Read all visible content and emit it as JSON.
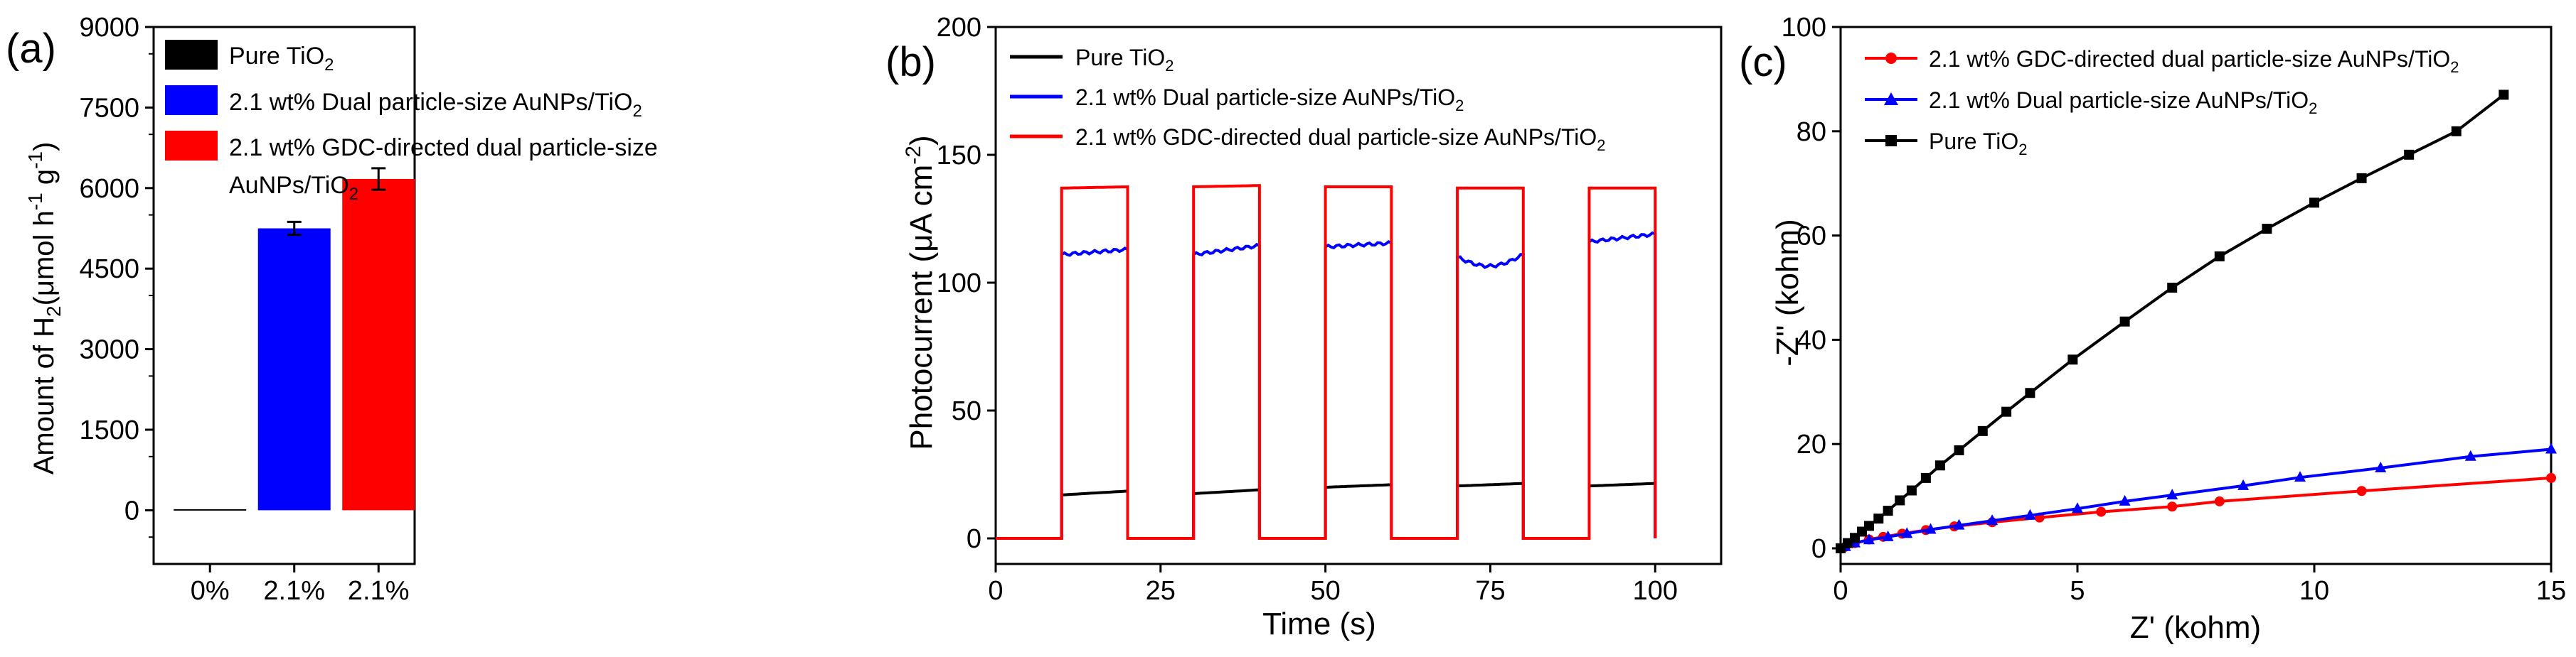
{
  "colors": {
    "black": "#000000",
    "blue": "#0000ff",
    "red": "#ff0000"
  },
  "chart_data": [
    {
      "type": "bar",
      "panel_label": "(a)",
      "categories": [
        "0%",
        "2.1%",
        "2.1%"
      ],
      "values": [
        20,
        5250,
        6170
      ],
      "errors": [
        0,
        120,
        200
      ],
      "colors": [
        "#000000",
        "#0000ff",
        "#ff0000"
      ],
      "ylabel": {
        "a": "Amount of H",
        "sub": "2",
        "b": "(μmol h",
        "sup1": "-1",
        "c": " g",
        "sup2": "-1",
        "d": ")"
      },
      "ylim": [
        -1000,
        9000
      ],
      "yticks": [
        0,
        1500,
        3000,
        4500,
        6000,
        7500,
        9000
      ],
      "xlabel": "",
      "legend": [
        {
          "name": "Pure TiO",
          "sub": "2",
          "color": "#000000"
        },
        {
          "name": "2.1 wt% Dual particle-size AuNPs/TiO",
          "sub": "2",
          "color": "#0000ff"
        },
        {
          "name": "2.1 wt% GDC-directed dual particle-size",
          "line2": "AuNPs/TiO",
          "sub": "2",
          "color": "#ff0000"
        }
      ]
    },
    {
      "type": "line",
      "panel_label": "(b)",
      "xlabel": "Time (s)",
      "ylabel": {
        "a": "Photocurrent (μA cm",
        "sup": "-2",
        "b": ")"
      },
      "xlim": [
        0,
        110
      ],
      "ylim": [
        -10,
        200
      ],
      "xticks": [
        0,
        25,
        50,
        75,
        100
      ],
      "yticks": [
        0,
        50,
        100,
        150,
        200
      ],
      "on_intervals": [
        [
          10,
          20
        ],
        [
          30,
          40
        ],
        [
          50,
          60
        ],
        [
          70,
          80
        ],
        [
          90,
          100
        ]
      ],
      "series": [
        {
          "name": "Pure TiO",
          "sub": "2",
          "color": "#000000",
          "off": 0,
          "on_start": [
            17,
            17.5,
            20,
            20.5,
            20.5
          ],
          "on_end": [
            18.5,
            19,
            21,
            21.5,
            21.5
          ],
          "dip": 0
        },
        {
          "name": "2.1 wt% Dual particle-size AuNPs/TiO",
          "sub": "2",
          "color": "#0000ff",
          "off": 0,
          "on_start": [
            111,
            111,
            114,
            110,
            116
          ],
          "on_end": [
            113,
            114.5,
            115.5,
            111,
            119
          ],
          "dip": 4
        },
        {
          "name": "2.1 wt% GDC-directed dual particle-size AuNPs/TiO",
          "sub": "2",
          "color": "#ff0000",
          "off": 0,
          "on_start": [
            137,
            137.5,
            137.5,
            137,
            137
          ],
          "on_end": [
            137.5,
            138,
            137.5,
            137,
            137
          ],
          "dip": 0
        }
      ]
    },
    {
      "type": "scatter",
      "panel_label": "(c)",
      "xlabel": "Z' (kohm)",
      "ylabel": "-Z'' (kohm)",
      "xlim": [
        0,
        15
      ],
      "ylim": [
        -3,
        100
      ],
      "xticks": [
        0,
        5,
        10,
        15
      ],
      "yticks": [
        0,
        20,
        40,
        60,
        80,
        100
      ],
      "series": [
        {
          "name": "2.1 wt% GDC-directed dual particle-size AuNPs/TiO",
          "sub": "2",
          "color": "#ff0000",
          "marker": "circle",
          "x": [
            0.1,
            0.3,
            0.6,
            0.9,
            1.3,
            1.8,
            2.4,
            3.2,
            4.2,
            5.5,
            7.0,
            8.0,
            11.0,
            15.0
          ],
          "y": [
            0.3,
            1.0,
            1.7,
            2.2,
            2.8,
            3.5,
            4.2,
            5.0,
            5.9,
            7.0,
            8.0,
            9.0,
            11.0,
            13.5
          ]
        },
        {
          "name": "2.1 wt% Dual particle-size AuNPs/TiO",
          "sub": "2",
          "color": "#0000ff",
          "marker": "triangle",
          "x": [
            0.1,
            0.3,
            0.6,
            1.0,
            1.4,
            1.9,
            2.5,
            3.2,
            4.0,
            5.0,
            6.0,
            7.0,
            8.5,
            9.7,
            11.4,
            13.3,
            15.0
          ],
          "y": [
            0.3,
            1.0,
            1.6,
            2.2,
            2.8,
            3.6,
            4.4,
            5.3,
            6.3,
            7.6,
            9.0,
            10.2,
            12.0,
            13.6,
            15.4,
            17.6,
            19.0
          ]
        },
        {
          "name": "Pure TiO",
          "sub": "2",
          "color": "#000000",
          "marker": "square",
          "x": [
            0.0,
            0.15,
            0.3,
            0.45,
            0.6,
            0.8,
            1.0,
            1.25,
            1.5,
            1.8,
            2.1,
            2.5,
            3.0,
            3.5,
            4.0,
            4.9,
            6.0,
            7.0,
            8.0,
            9.0,
            10.0,
            11.0,
            12.0,
            13.0,
            14.0
          ],
          "y": [
            0.0,
            1.0,
            2.0,
            3.2,
            4.3,
            5.7,
            7.2,
            9.2,
            11.1,
            13.5,
            15.9,
            18.8,
            22.5,
            26.2,
            29.8,
            36.2,
            43.5,
            50.0,
            56.0,
            61.3,
            66.3,
            71.0,
            75.5,
            80.0,
            87.0
          ]
        }
      ]
    }
  ]
}
